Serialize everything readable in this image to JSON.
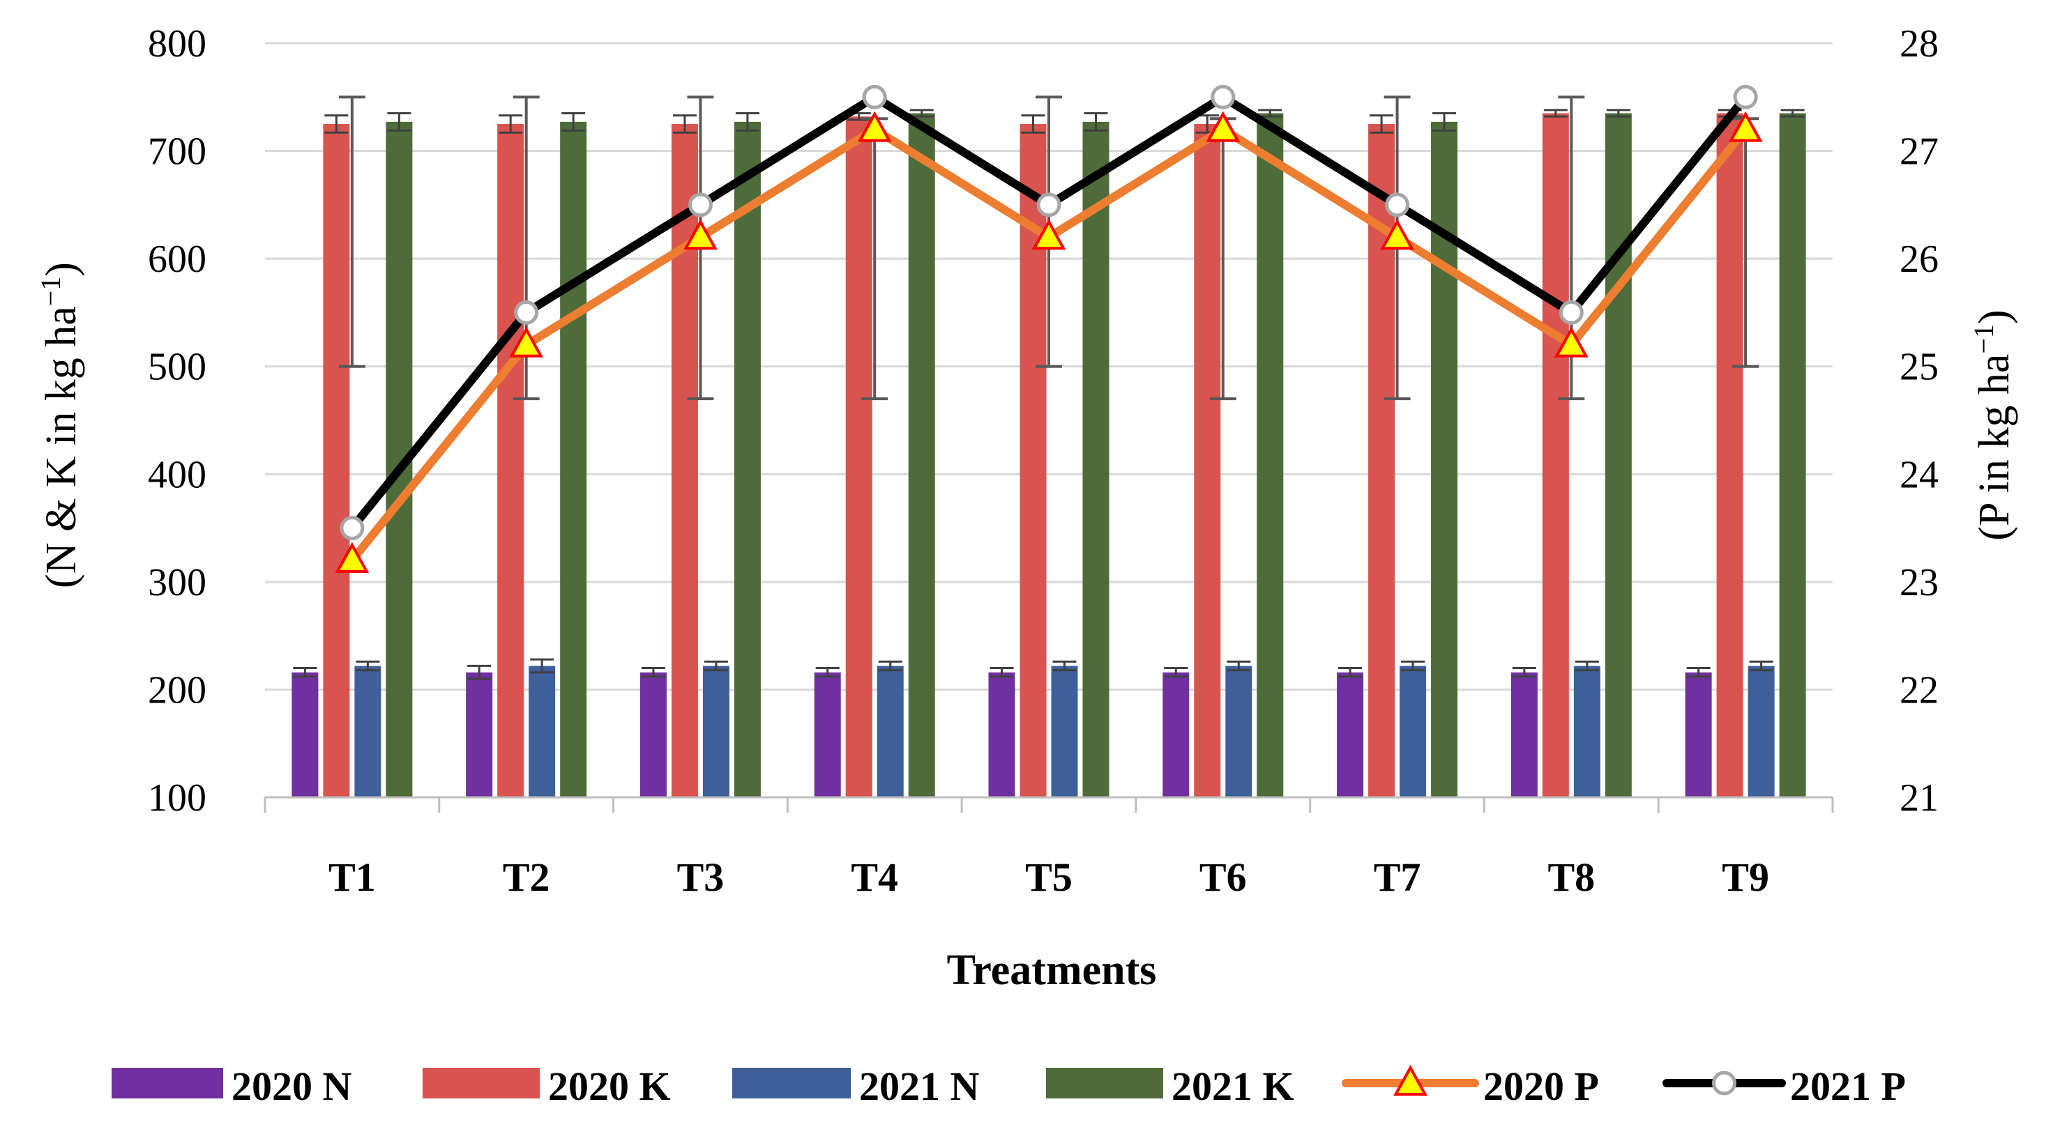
{
  "chart_data": {
    "type": "bar",
    "categories": [
      "T1",
      "T2",
      "T3",
      "T4",
      "T5",
      "T6",
      "T7",
      "T8",
      "T9"
    ],
    "xlabel": "Treatments",
    "ylabel": "(N & K in kg ha",
    "ylabel_sup": "−1",
    "ylabel_end": ")",
    "y2label": "(P in kg ha",
    "y2label_sup": "−1",
    "y2label_end": ")",
    "ylim": [
      100,
      800
    ],
    "y2lim": [
      21,
      28
    ],
    "yticks": [
      100,
      200,
      300,
      400,
      500,
      600,
      700,
      800
    ],
    "y2ticks": [
      21,
      22,
      23,
      24,
      25,
      26,
      27,
      28
    ],
    "grid": true,
    "legend_position": "bottom",
    "series": [
      {
        "name": "2020 N",
        "type": "bar",
        "axis": "left",
        "color": "#7030A0",
        "values": [
          216,
          216,
          216,
          216,
          216,
          216,
          216,
          216,
          216
        ],
        "error": [
          4,
          6,
          4,
          4,
          4,
          4,
          4,
          4,
          4
        ]
      },
      {
        "name": "2020 K",
        "type": "bar",
        "axis": "left",
        "color": "#D9534F",
        "values": [
          725,
          725,
          725,
          732,
          725,
          725,
          725,
          735,
          735
        ],
        "error": [
          8,
          8,
          8,
          3,
          8,
          8,
          8,
          3,
          3
        ]
      },
      {
        "name": "2021 N",
        "type": "bar",
        "axis": "left",
        "color": "#3E5F9A",
        "values": [
          222,
          222,
          222,
          222,
          222,
          222,
          222,
          222,
          222
        ],
        "error": [
          4,
          6,
          4,
          4,
          4,
          4,
          4,
          4,
          4
        ]
      },
      {
        "name": "2021 K",
        "type": "bar",
        "axis": "left",
        "color": "#4E6B3A",
        "values": [
          727,
          727,
          727,
          735,
          727,
          735,
          727,
          735,
          735
        ],
        "error": [
          8,
          8,
          8,
          3,
          8,
          3,
          8,
          3,
          3
        ]
      },
      {
        "name": "2020 P",
        "type": "line",
        "axis": "right",
        "color": "#ED7D31",
        "marker": "triangle",
        "marker_fill": "#FFFF00",
        "marker_edge": "#FF0000",
        "values": [
          23.2,
          25.2,
          26.2,
          27.2,
          26.2,
          27.2,
          26.2,
          25.2,
          27.2
        ]
      },
      {
        "name": "2021 P",
        "type": "line",
        "axis": "right",
        "color": "#000000",
        "marker": "circle",
        "marker_fill": "#FFFFFF",
        "marker_edge": "#A6A6A6",
        "values": [
          23.5,
          25.5,
          26.5,
          27.5,
          26.5,
          27.5,
          26.5,
          25.5,
          27.5
        ]
      }
    ],
    "p_error_low": [
      25.0,
      24.7,
      24.7,
      24.7,
      25.0,
      24.7,
      24.7,
      24.7,
      25.0
    ],
    "p_error_high": [
      27.5,
      27.5,
      27.5,
      27.3,
      27.5,
      27.3,
      27.5,
      27.5,
      27.3
    ]
  }
}
